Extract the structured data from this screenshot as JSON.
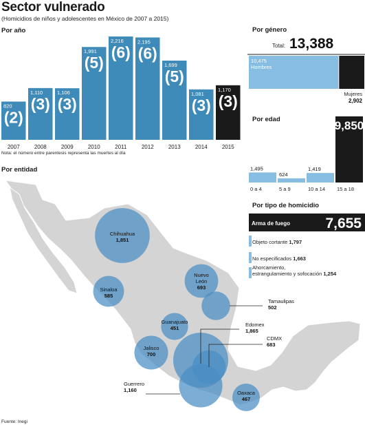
{
  "title": "Sector vulnerado",
  "subtitle": "(Homicidios de niños y adolescentes en México de 2007 a 2015)",
  "note": "Nota: el número entre parentesis representa las muertes al día",
  "source": "Fuente: Inegi",
  "colors": {
    "blue": "#3e8ab8",
    "light_blue": "#86bde0",
    "black": "#1a1a1a",
    "map": "#d4d4d4",
    "circle": "#4a8ec4"
  },
  "chart_data": [
    {
      "type": "bar",
      "title": "Por año",
      "categories": [
        "2007",
        "2008",
        "2009",
        "2010",
        "2011",
        "2012",
        "2013",
        "2014",
        "2015"
      ],
      "values": [
        820,
        1110,
        1106,
        1991,
        2216,
        2195,
        1699,
        1081,
        1170
      ],
      "value_labels": [
        "820",
        "1,110",
        "1,106",
        "1,991",
        "2,216",
        "2,195",
        "1,699",
        "1,081",
        "1,170"
      ],
      "daily_deaths": [
        "(2)",
        "(3)",
        "(3)",
        "(5)",
        "(6)",
        "(6)",
        "(5)",
        "(3)",
        "(3)"
      ],
      "ylim": [
        0,
        2216
      ]
    },
    {
      "type": "bar",
      "title": "Por género",
      "total_label": "Total:",
      "total": "13,388",
      "categories": [
        "Hombres",
        "Mujeres"
      ],
      "values": [
        10475,
        2902
      ],
      "value_labels": [
        "10,475",
        "2,902"
      ]
    },
    {
      "type": "bar",
      "title": "Por edad",
      "categories": [
        "0 a 4",
        "5 a 9",
        "10 a 14",
        "15 a 18"
      ],
      "values": [
        1495,
        624,
        1419,
        9850
      ],
      "value_labels": [
        "1,495",
        "624",
        "1,419",
        "9,850"
      ],
      "ylim": [
        0,
        9850
      ]
    },
    {
      "type": "bar",
      "title": "Por tipo de homicidio",
      "categories": [
        "Arma de fuego",
        "Objeto cortante",
        "No especificados",
        "Ahorcamiento, estrangulamiento y sofocación"
      ],
      "values": [
        7655,
        1797,
        1663,
        1254
      ],
      "value_labels": [
        "7,655",
        "1,797",
        "1,663",
        "1,254"
      ],
      "label_lines": [
        [
          "Arma de fuego"
        ],
        [
          "Objeto cortante"
        ],
        [
          "No especificados"
        ],
        [
          "Ahorcamiento,",
          "estrangulamiento y sofocación"
        ]
      ]
    },
    {
      "type": "scatter",
      "title": "Por entidad",
      "points": [
        {
          "state": "Chihuahua",
          "label": [
            "Chihuahua"
          ],
          "value": 1851,
          "value_label": "1,851"
        },
        {
          "state": "Sinaloa",
          "label": [
            "Sinaloa"
          ],
          "value": 585,
          "value_label": "585"
        },
        {
          "state": "Nuevo León",
          "label": [
            "Nuevo",
            "León"
          ],
          "value": 693,
          "value_label": "693"
        },
        {
          "state": "Tamaulipas",
          "label": [
            "Tamaulipas"
          ],
          "value": 502,
          "value_label": "502"
        },
        {
          "state": "Guanajuato",
          "label": [
            "Guanajuato"
          ],
          "value": 451,
          "value_label": "451"
        },
        {
          "state": "Jalisco",
          "label": [
            "Jalisco"
          ],
          "value": 700,
          "value_label": "700"
        },
        {
          "state": "Edomex",
          "label": [
            "Edomex"
          ],
          "value": 1865,
          "value_label": "1,865"
        },
        {
          "state": "CDMX",
          "label": [
            "CDMX"
          ],
          "value": 683,
          "value_label": "683"
        },
        {
          "state": "Guerrero",
          "label": [
            "Guerrero"
          ],
          "value": 1160,
          "value_label": "1,160"
        },
        {
          "state": "Oaxaca",
          "label": [
            "Oaxaca"
          ],
          "value": 467,
          "value_label": "467"
        }
      ]
    }
  ]
}
